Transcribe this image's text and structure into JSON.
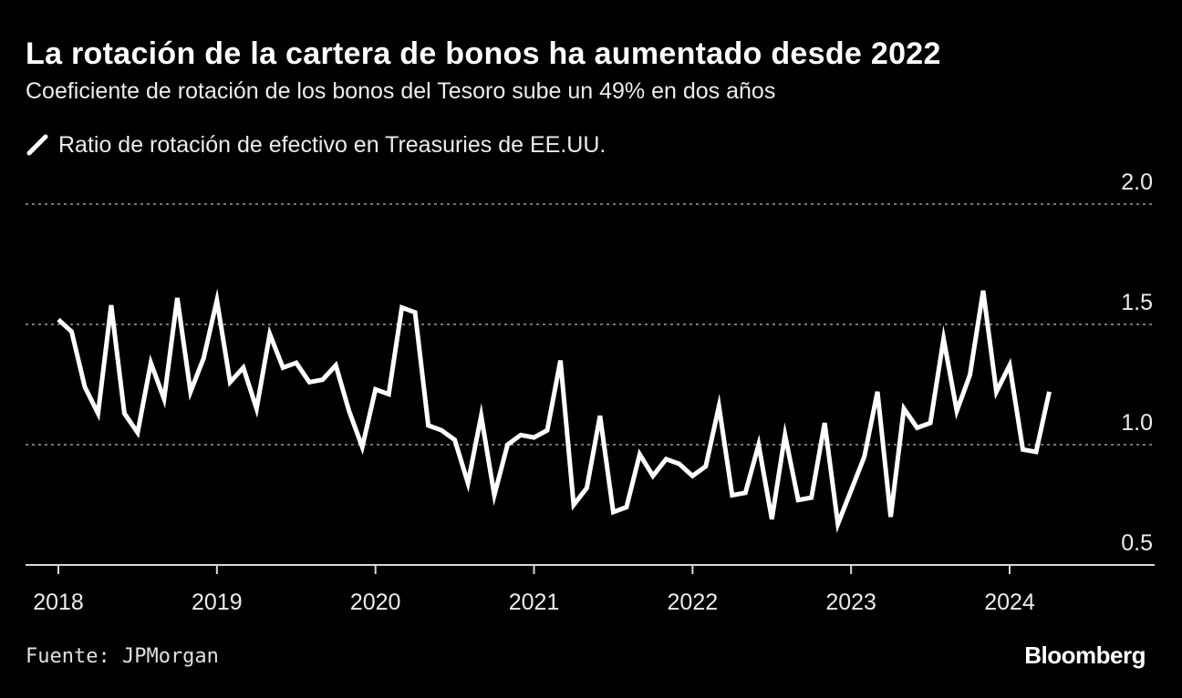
{
  "header": {
    "title": "La rotación de la cartera de bonos ha aumentado desde 2022",
    "subtitle": "Coeficiente de rotación de los bonos del Tesoro sube un 49% en dos años"
  },
  "footer": {
    "source": "Fuente: JPMorgan",
    "brand": "Bloomberg"
  },
  "colors": {
    "background": "#000000",
    "line": "#ffffff",
    "grid": "#9a9a9a"
  },
  "chart_data": {
    "type": "line",
    "title": "La rotación de la cartera de bonos ha aumentado desde 2022",
    "subtitle": "Coeficiente de rotación de los bonos del Tesoro sube un 49% en dos años",
    "xlabel": "",
    "ylabel": "",
    "ylim": [
      0.5,
      2.0
    ],
    "yticks": [
      2.0,
      1.5,
      1.0,
      0.5
    ],
    "ytick_labels": [
      "2.0",
      "1.5",
      "1.0",
      "0.5"
    ],
    "y_axis_side": "right",
    "grid": "horizontal dotted",
    "legend_position": "top-left",
    "xlim": [
      2017.8,
      2024.9
    ],
    "xticks": [
      2018,
      2019,
      2020,
      2021,
      2022,
      2023,
      2024
    ],
    "xtick_labels": [
      "2018",
      "2019",
      "2020",
      "2021",
      "2022",
      "2023",
      "2024"
    ],
    "series": [
      {
        "name": "Ratio de rotación de efectivo en Treasuries de EE.UU.",
        "start": "2018-01",
        "frequency": "monthly",
        "values": [
          1.52,
          1.47,
          1.24,
          1.13,
          1.58,
          1.13,
          1.05,
          1.34,
          1.19,
          1.61,
          1.22,
          1.36,
          1.6,
          1.26,
          1.32,
          1.15,
          1.46,
          1.32,
          1.34,
          1.26,
          1.27,
          1.33,
          1.14,
          0.99,
          1.23,
          1.21,
          1.57,
          1.55,
          1.08,
          1.06,
          1.02,
          0.84,
          1.12,
          0.79,
          1.0,
          1.04,
          1.03,
          1.06,
          1.35,
          0.75,
          0.82,
          1.12,
          0.72,
          0.74,
          0.96,
          0.87,
          0.94,
          0.92,
          0.87,
          0.91,
          1.16,
          0.79,
          0.8,
          1.0,
          0.69,
          1.04,
          0.77,
          0.78,
          1.09,
          0.67,
          0.81,
          0.95,
          1.22,
          0.7,
          1.15,
          1.07,
          1.09,
          1.44,
          1.14,
          1.29,
          1.64,
          1.22,
          1.33,
          0.98,
          0.97,
          1.22
        ]
      }
    ]
  }
}
